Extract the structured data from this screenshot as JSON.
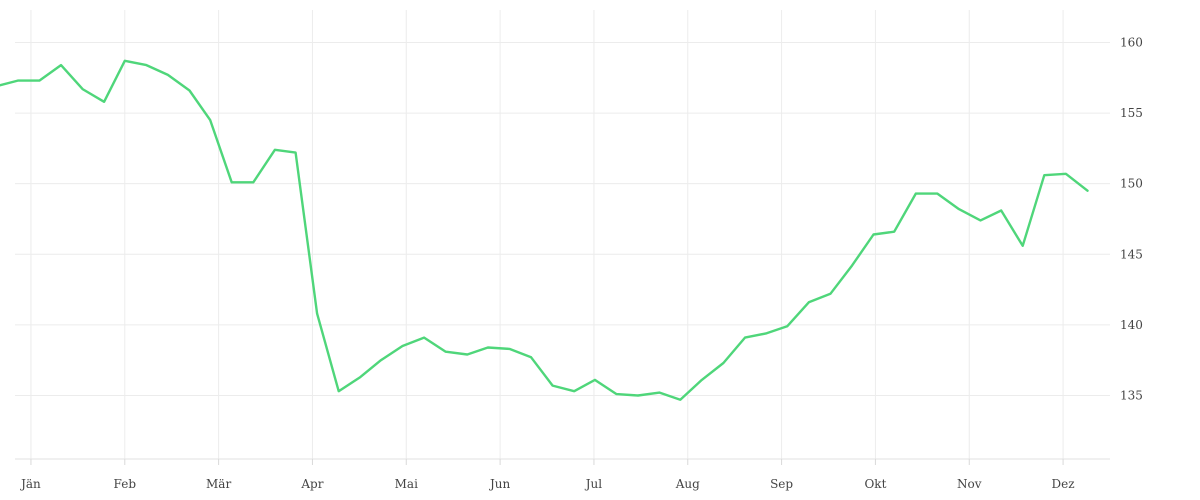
{
  "chart_data": {
    "type": "line",
    "title": "",
    "xlabel": "",
    "ylabel": "",
    "x_ticks": [
      "Jän",
      "Feb",
      "Mär",
      "Apr",
      "Mai",
      "Jun",
      "Jul",
      "Aug",
      "Sep",
      "Okt",
      "Nov",
      "Dez"
    ],
    "y_ticks": [
      135,
      140,
      145,
      150,
      155,
      160
    ],
    "ylim": [
      130.5,
      162.3
    ],
    "xlim": [
      -0.17,
      11.5
    ],
    "grid": true,
    "y_axis_side": "right",
    "colors": {
      "series": "#4fd67a"
    },
    "series": [
      {
        "x": [
          -0.37,
          -0.14,
          0.09,
          0.32,
          0.55,
          0.78,
          1.0,
          1.23,
          1.46,
          1.69,
          1.91,
          2.14,
          2.37,
          2.6,
          2.82,
          3.05,
          3.28,
          3.51,
          3.73,
          3.96,
          4.19,
          4.42,
          4.65,
          4.87,
          5.1,
          5.33,
          5.56,
          5.79,
          6.01,
          6.24,
          6.47,
          6.7,
          6.92,
          7.15,
          7.38,
          7.61,
          7.84,
          8.06,
          8.29,
          8.52,
          8.75,
          8.98,
          9.2,
          9.43,
          9.66,
          9.89,
          10.12,
          10.34,
          10.57,
          10.8,
          11.03,
          11.26
        ],
        "values": [
          156.9,
          157.3,
          157.3,
          158.4,
          156.7,
          155.8,
          158.7,
          158.4,
          157.7,
          156.6,
          154.5,
          150.1,
          150.1,
          152.4,
          152.2,
          140.8,
          135.3,
          136.3,
          137.5,
          138.5,
          139.1,
          138.1,
          137.9,
          138.4,
          138.3,
          137.7,
          135.7,
          135.3,
          136.1,
          135.1,
          135.0,
          135.2,
          134.7,
          136.1,
          137.3,
          139.1,
          139.4,
          139.9,
          141.6,
          142.2,
          144.2,
          146.4,
          146.6,
          149.3,
          149.3,
          148.2,
          147.4,
          148.1,
          145.6,
          150.6,
          150.7,
          149.5
        ]
      }
    ]
  }
}
